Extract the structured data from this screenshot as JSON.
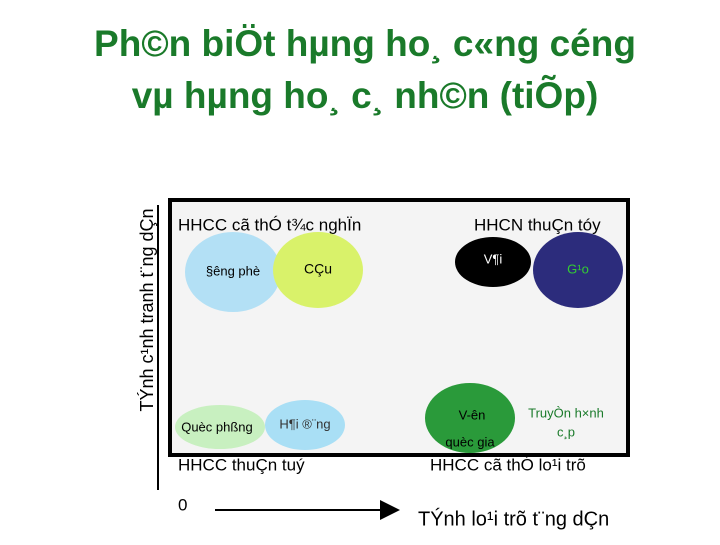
{
  "title": {
    "lines": [
      "Ph©n biÖt hµng ho¸ c«ng céng",
      "vµ hµng ho¸ c¸ nh©n (tiÕp)"
    ]
  },
  "axes": {
    "y_label": "TÝnh c¹nh tranh t¨ng dÇn",
    "x_label": "TÝnh lo¹i trõ t¨ng dÇn",
    "origin": "0"
  },
  "quadrants": {
    "top_left": "HHCC cã thÓ t¾c nghÏn",
    "top_right": "HHCN thuÇn tóy",
    "bottom_left": "HHCC thuÇn tuý",
    "bottom_right": "HHCC cã thÓ lo¹i trõ"
  },
  "items": [
    {
      "label": "§êng phè"
    },
    {
      "label": "CÇu"
    },
    {
      "label": "V¶i"
    },
    {
      "label": "G¹o"
    },
    {
      "label": "Quèc phßng"
    },
    {
      "label": "H¶i ®¨ng"
    },
    {
      "label_lines": [
        "V-ên",
        "quèc gia"
      ]
    },
    {
      "label_lines": [
        "TruyÒn h×nh",
        "c¸p"
      ]
    }
  ]
}
